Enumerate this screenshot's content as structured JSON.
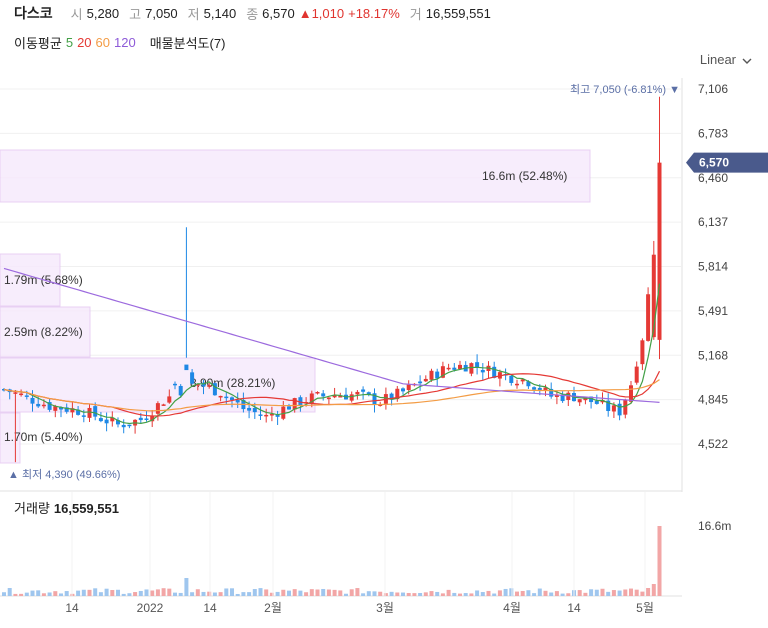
{
  "header": {
    "name": "다스코",
    "open_label": "시",
    "open": "5,280",
    "high_label": "고",
    "high": "7,050",
    "low_label": "저",
    "low": "5,140",
    "close_label": "종",
    "close": "6,570",
    "change": "▲1,010",
    "change_pct": "+18.17%",
    "volume_label": "거",
    "volume": "16,559,551"
  },
  "indicators": {
    "ma_label": "이동평균",
    "ma5": "5",
    "ma20": "20",
    "ma60": "60",
    "ma120": "120",
    "vp_label": "매물분석도(7)"
  },
  "scale_menu": "Linear",
  "colors": {
    "up": "#e53935",
    "down": "#1e88e5",
    "ma5": "#43a047",
    "ma20": "#e53935",
    "ma60": "#f39c45",
    "ma120": "#9c6ade",
    "badge": "#4a5a8c"
  },
  "chart_data": {
    "type": "candlestick",
    "y_ticks": [
      "7,106",
      "6,783",
      "6,460",
      "6,137",
      "5,814",
      "5,491",
      "5,168",
      "4,845",
      "4,522"
    ],
    "x_ticks": [
      "14",
      "2022",
      "14",
      "2월",
      "3월",
      "4월",
      "14",
      "5월"
    ],
    "ylim": [
      4400,
      7200
    ],
    "current_price": "6,570",
    "max_marker": "최고 7,050 (-6.81%)",
    "min_marker": "최저 4,390 (49.66%)",
    "volume_profile": [
      {
        "label": "16.6m (52.48%)"
      },
      {
        "label": "1.79m (5.68%)"
      },
      {
        "label": "2.59m (8.22%)"
      },
      {
        "label": "8.90m (28.21%)"
      },
      {
        "label": "1.70m (5.40%)"
      }
    ],
    "volume": {
      "title": "거래량",
      "value": "16,559,551",
      "tick": "16.6m"
    }
  }
}
